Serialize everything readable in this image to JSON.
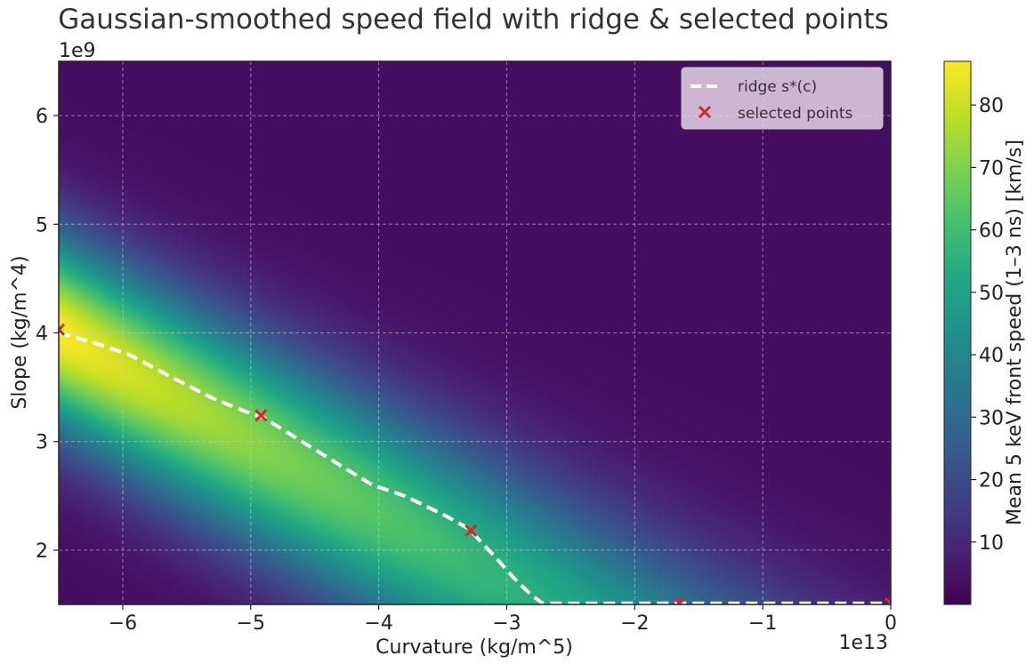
{
  "chart_data": {
    "type": "heatmap",
    "title": "Gaussian-smoothed speed field with ridge & selected points",
    "xlabel": "Curvature (kg/m^5)",
    "ylabel": "Slope (kg/m^4)",
    "x_offset_text": "1e13",
    "y_offset_text": "1e9",
    "xlim": [
      -6.5,
      0
    ],
    "ylim": [
      1.5,
      6.5
    ],
    "x_ticks": [
      -6,
      -5,
      -4,
      -3,
      -2,
      -1,
      0
    ],
    "x_tick_labels": [
      "−6",
      "−5",
      "−4",
      "−3",
      "−2",
      "−1",
      "0"
    ],
    "y_ticks": [
      2,
      3,
      4,
      5,
      6
    ],
    "y_tick_labels": [
      "2",
      "3",
      "4",
      "5",
      "6"
    ],
    "grid": true,
    "colormap": "viridis",
    "colorbar": {
      "label": "Mean 5 keV front speed (1–3 ns) [km/s]",
      "range": [
        0,
        87
      ],
      "ticks": [
        10,
        20,
        30,
        40,
        50,
        60,
        70,
        80
      ],
      "tick_labels": [
        "10",
        "20",
        "30",
        "40",
        "50",
        "60",
        "70",
        "80"
      ]
    },
    "field": {
      "description_of_shape": "ridge",
      "peak_value": 87
    },
    "ridge": {
      "name": "ridge s*(c)",
      "x": [
        -6.5,
        -6.2,
        -5.95,
        -5.6,
        -5.3,
        -5.05,
        -4.9,
        -4.6,
        -4.3,
        -4.05,
        -3.8,
        -3.5,
        -3.3,
        -3.1,
        -2.95,
        -2.82,
        -2.72,
        -2.5,
        -2.0,
        -1.65,
        -1.0,
        0
      ],
      "y": [
        4.0,
        3.9,
        3.8,
        3.58,
        3.4,
        3.28,
        3.22,
        3.0,
        2.78,
        2.6,
        2.5,
        2.33,
        2.2,
        1.95,
        1.75,
        1.6,
        1.51,
        1.51,
        1.51,
        1.51,
        1.51,
        1.51
      ]
    },
    "selected_points": {
      "name": "selected points",
      "x": [
        -6.5,
        -4.92,
        -3.28,
        -1.65,
        0
      ],
      "y": [
        4.03,
        3.24,
        2.18,
        1.51,
        1.51
      ]
    },
    "legend_position": "upper right"
  },
  "colors": {
    "ridge": "#ffffff",
    "points": "#d62728",
    "grid": "#cccccc"
  }
}
